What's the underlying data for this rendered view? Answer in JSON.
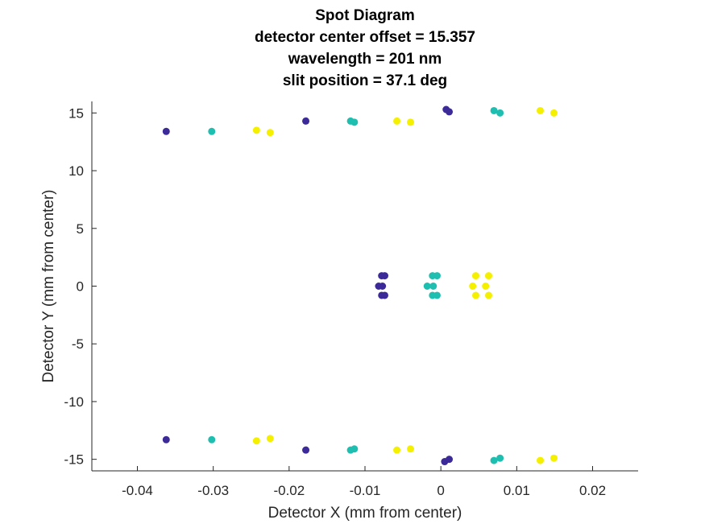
{
  "chart_data": {
    "type": "scatter",
    "title_lines": [
      "Spot Diagram",
      "detector center offset = 15.357",
      "wavelength = 201 nm",
      "slit position = 37.1 deg"
    ],
    "xlabel": "Detector X (mm from center)",
    "ylabel": "Detector Y (mm from center)",
    "xlim": [
      -0.046,
      0.026
    ],
    "ylim": [
      -16,
      16
    ],
    "xticks": [
      -0.04,
      -0.03,
      -0.02,
      -0.01,
      0,
      0.01,
      0.02
    ],
    "xtick_labels": [
      "-0.04",
      "-0.03",
      "-0.02",
      "-0.01",
      "0",
      "0.01",
      "0.02"
    ],
    "yticks": [
      -15,
      -10,
      -5,
      0,
      5,
      10,
      15
    ],
    "ytick_labels": [
      "-15",
      "-10",
      "-5",
      "0",
      "5",
      "10",
      "15"
    ],
    "grid": false,
    "series": [
      {
        "color": "#3b2a98",
        "points": [
          [
            -0.0362,
            13.4
          ],
          [
            -0.0178,
            14.3
          ],
          [
            0.0007,
            15.3
          ],
          [
            0.0011,
            15.1
          ],
          [
            -0.0362,
            -13.3
          ],
          [
            -0.0178,
            -14.2
          ],
          [
            0.0005,
            -15.2
          ],
          [
            0.0011,
            -15.0
          ],
          [
            -0.0078,
            0.9
          ],
          [
            -0.0074,
            0.9
          ],
          [
            -0.0082,
            0.0
          ],
          [
            -0.0077,
            0.0
          ],
          [
            -0.0078,
            -0.8
          ],
          [
            -0.0074,
            -0.8
          ]
        ]
      },
      {
        "color": "#1ebfb0",
        "points": [
          [
            -0.0302,
            13.4
          ],
          [
            -0.0119,
            14.3
          ],
          [
            -0.0114,
            14.2
          ],
          [
            0.007,
            15.2
          ],
          [
            0.0078,
            15.0
          ],
          [
            -0.0302,
            -13.3
          ],
          [
            -0.0119,
            -14.2
          ],
          [
            -0.0114,
            -14.1
          ],
          [
            0.007,
            -15.1
          ],
          [
            0.0078,
            -14.9
          ],
          [
            -0.0011,
            0.9
          ],
          [
            -0.0005,
            0.9
          ],
          [
            -0.0018,
            0.0
          ],
          [
            -0.001,
            0.0
          ],
          [
            -0.0011,
            -0.8
          ],
          [
            -0.0005,
            -0.8
          ]
        ]
      },
      {
        "color": "#f5f000",
        "points": [
          [
            -0.0243,
            13.5
          ],
          [
            -0.0225,
            13.3
          ],
          [
            -0.0058,
            14.3
          ],
          [
            -0.004,
            14.2
          ],
          [
            0.0131,
            15.2
          ],
          [
            0.0149,
            15.0
          ],
          [
            -0.0243,
            -13.4
          ],
          [
            -0.0225,
            -13.2
          ],
          [
            -0.0058,
            -14.2
          ],
          [
            -0.004,
            -14.1
          ],
          [
            0.0131,
            -15.1
          ],
          [
            0.0149,
            -14.9
          ],
          [
            0.0046,
            0.9
          ],
          [
            0.0063,
            0.9
          ],
          [
            0.0042,
            0.0
          ],
          [
            0.0059,
            0.0
          ],
          [
            0.0046,
            -0.8
          ],
          [
            0.0063,
            -0.8
          ]
        ]
      }
    ]
  }
}
